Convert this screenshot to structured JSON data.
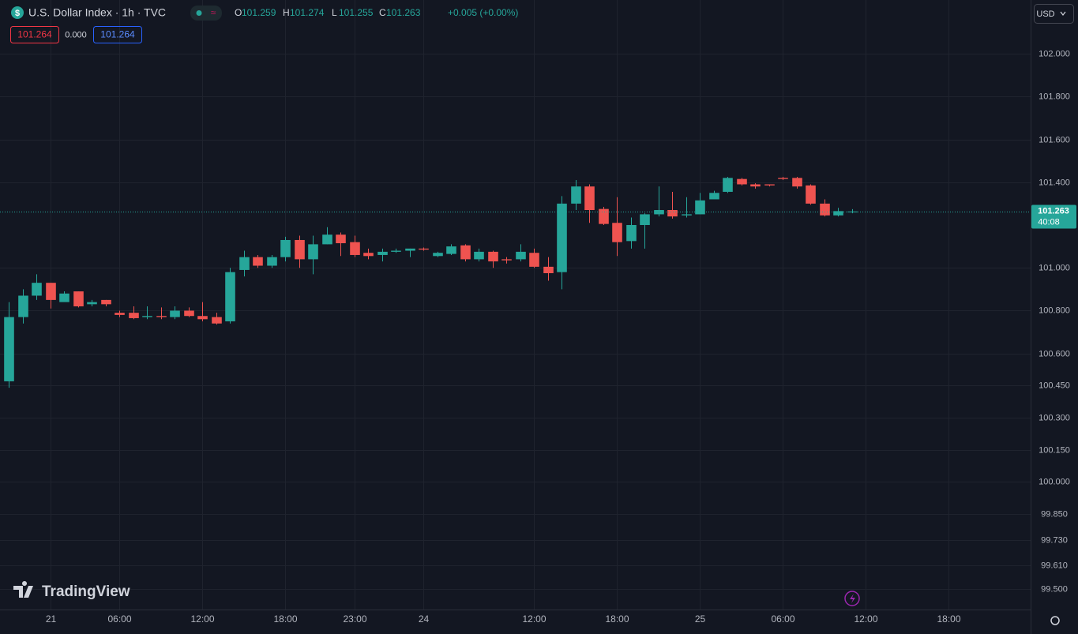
{
  "chart_data": {
    "type": "candlestick",
    "title": "U.S. Dollar Index · 1h · TVC",
    "change": "+0.005 (+0.00%)",
    "ohlc_letters": [
      "O",
      "H",
      "L",
      "C"
    ],
    "quote": {
      "sell": "101.264",
      "spread": "0.000",
      "buy": "101.264"
    },
    "currency": "USD",
    "countdown": "40:08",
    "brand": "TradingView",
    "up_color": "#26a69a",
    "down_color": "#ef5350",
    "grid": true,
    "open": [
      100.47,
      100.77,
      100.87,
      100.93,
      100.84,
      100.89,
      100.83,
      100.85,
      100.79,
      100.79,
      100.77,
      100.775,
      100.77,
      100.8,
      100.775,
      100.77,
      100.75,
      100.99,
      101.05,
      101.01,
      101.05,
      101.13,
      101.04,
      101.11,
      101.155,
      101.12,
      101.07,
      101.06,
      101.075,
      101.08,
      101.09,
      101.055,
      101.065,
      101.105,
      101.04,
      101.075,
      101.04,
      101.04,
      101.07,
      101.005,
      100.98,
      101.3,
      101.38,
      101.275,
      101.21,
      101.125,
      101.2,
      101.25,
      101.27,
      101.245,
      101.25,
      101.32,
      101.355,
      101.415,
      101.39,
      101.39,
      101.42,
      101.42,
      101.385,
      101.3,
      101.245,
      101.259
    ],
    "high": [
      100.84,
      100.9,
      100.97,
      100.93,
      100.89,
      100.89,
      100.85,
      100.85,
      100.8,
      100.82,
      100.82,
      100.815,
      100.82,
      100.815,
      100.84,
      100.79,
      101.0,
      101.08,
      101.06,
      101.06,
      101.145,
      101.15,
      101.15,
      101.19,
      101.165,
      101.15,
      101.09,
      101.09,
      101.09,
      101.09,
      101.095,
      101.075,
      101.11,
      101.11,
      101.09,
      101.08,
      101.05,
      101.11,
      101.09,
      101.05,
      101.335,
      101.41,
      101.39,
      101.285,
      101.33,
      101.235,
      101.255,
      101.38,
      101.355,
      101.33,
      101.35,
      101.36,
      101.425,
      101.42,
      101.395,
      101.39,
      101.425,
      101.425,
      101.39,
      101.32,
      101.28,
      101.274
    ],
    "low": [
      100.44,
      100.74,
      100.85,
      100.81,
      100.85,
      100.815,
      100.82,
      100.82,
      100.77,
      100.76,
      100.76,
      100.76,
      100.76,
      100.77,
      100.75,
      100.735,
      100.74,
      100.96,
      101.0,
      101.0,
      101.03,
      101.0,
      100.97,
      101.11,
      101.055,
      101.05,
      101.04,
      101.03,
      101.07,
      101.05,
      101.08,
      101.05,
      101.06,
      101.03,
      101.03,
      101.0,
      101.02,
      101.03,
      101.0,
      100.94,
      100.9,
      101.27,
      101.21,
      101.2,
      101.055,
      101.09,
      101.09,
      101.24,
      101.23,
      101.235,
      101.25,
      101.34,
      101.35,
      101.385,
      101.37,
      101.38,
      101.41,
      101.37,
      101.295,
      101.24,
      101.24,
      101.255
    ],
    "close": [
      100.77,
      100.87,
      100.93,
      100.85,
      100.88,
      100.82,
      100.84,
      100.83,
      100.78,
      100.765,
      100.775,
      100.77,
      100.8,
      100.775,
      100.76,
      100.74,
      100.98,
      101.05,
      101.01,
      101.05,
      101.13,
      101.04,
      101.11,
      101.155,
      101.115,
      101.06,
      101.055,
      101.075,
      101.08,
      101.09,
      101.085,
      101.07,
      101.1,
      101.04,
      101.075,
      101.03,
      101.035,
      101.075,
      101.005,
      100.975,
      101.3,
      101.38,
      101.27,
      101.205,
      101.12,
      101.2,
      101.25,
      101.27,
      101.24,
      101.25,
      101.315,
      101.35,
      101.42,
      101.39,
      101.38,
      101.385,
      101.415,
      101.38,
      101.3,
      101.245,
      101.265,
      101.263
    ],
    "xlim": [
      -0.63,
      73.94
    ],
    "xticks": [
      {
        "value": 3,
        "label": "21"
      },
      {
        "value": 8,
        "label": "06:00"
      },
      {
        "value": 14,
        "label": "12:00"
      },
      {
        "value": 20,
        "label": "18:00"
      },
      {
        "value": 25,
        "label": "23:00"
      },
      {
        "value": 30,
        "label": "24"
      },
      {
        "value": 38,
        "label": "12:00"
      },
      {
        "value": 44,
        "label": "18:00"
      },
      {
        "value": 50,
        "label": "25"
      },
      {
        "value": 56,
        "label": "06:00"
      },
      {
        "value": 62,
        "label": "12:00"
      },
      {
        "value": 68,
        "label": "18:00"
      }
    ],
    "ylim": [
      99.404,
      102.251
    ],
    "yticks": [
      {
        "value": 102,
        "label": "102.000"
      },
      {
        "value": 101.8,
        "label": "101.800"
      },
      {
        "value": 101.6,
        "label": "101.600"
      },
      {
        "value": 101.4,
        "label": "101.400"
      },
      {
        "value": 101,
        "label": "101.000"
      },
      {
        "value": 100.8,
        "label": "100.800"
      },
      {
        "value": 100.6,
        "label": "100.600"
      },
      {
        "value": 100.45,
        "label": "100.450"
      },
      {
        "value": 100.3,
        "label": "100.300"
      },
      {
        "value": 100.15,
        "label": "100.150"
      },
      {
        "value": 100,
        "label": "100.000"
      },
      {
        "value": 99.85,
        "label": "99.850"
      },
      {
        "value": 99.73,
        "label": "99.730"
      },
      {
        "value": 99.61,
        "label": "99.610"
      },
      {
        "value": 99.5,
        "label": "99.500"
      }
    ]
  }
}
